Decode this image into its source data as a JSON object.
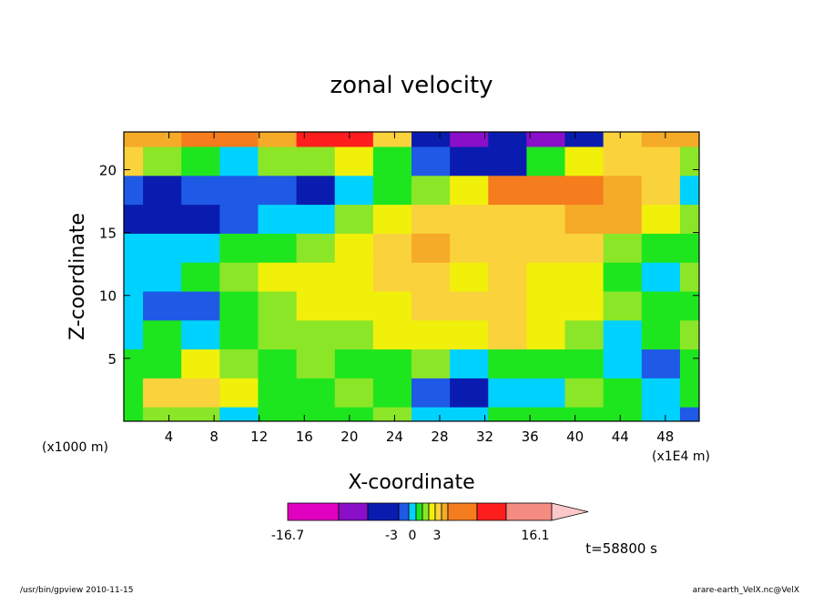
{
  "chart_data": {
    "type": "heatmap",
    "title": "zonal velocity",
    "xlabel": "X-coordinate",
    "ylabel": "Z-coordinate",
    "x_unit_left": "(x1000 m)",
    "x_unit_right": "(x1E4 m)",
    "xlim": [
      0,
      51
    ],
    "ylim": [
      0,
      23
    ],
    "x_ticks": [
      "4",
      "8",
      "12",
      "16",
      "20",
      "24",
      "28",
      "32",
      "36",
      "40",
      "44",
      "48"
    ],
    "y_ticks": [
      "5",
      "10",
      "15",
      "20"
    ],
    "colorbar": {
      "labels": [
        "-16.7",
        "-3",
        "0",
        "3",
        "16.1"
      ],
      "colors": [
        "#e000c0",
        "#8a0fc8",
        "#0a1cb0",
        "#1e5ae6",
        "#00d2ff",
        "#1ee61e",
        "#8ce628",
        "#f0f00a",
        "#fad23c",
        "#f5aa28",
        "#f57d1e",
        "#ff1e1e",
        "#f58c82",
        "#fac8c8"
      ]
    },
    "x": [
      0,
      3.4,
      6.8,
      10.2,
      13.6,
      17,
      20.4,
      23.8,
      27.2,
      30.6,
      34,
      37.4,
      40.8,
      44.2,
      47.6,
      51
    ],
    "y": [
      0,
      2.3,
      4.6,
      6.9,
      9.2,
      11.5,
      13.8,
      16.1,
      18.4,
      20.7,
      23
    ],
    "z": [
      [
        5,
        6,
        6,
        4,
        5,
        5,
        5,
        6,
        4,
        4,
        5,
        5,
        5,
        5,
        4,
        3
      ],
      [
        5,
        8,
        8,
        7,
        5,
        5,
        6,
        5,
        3,
        2,
        4,
        4,
        6,
        5,
        4,
        5
      ],
      [
        5,
        5,
        7,
        6,
        5,
        6,
        5,
        5,
        6,
        4,
        5,
        5,
        5,
        4,
        3,
        5
      ],
      [
        4,
        5,
        4,
        5,
        6,
        6,
        6,
        7,
        7,
        7,
        8,
        7,
        6,
        4,
        5,
        6
      ],
      [
        4,
        3,
        3,
        5,
        6,
        7,
        7,
        7,
        8,
        8,
        8,
        7,
        7,
        6,
        5,
        5
      ],
      [
        4,
        4,
        5,
        6,
        7,
        7,
        7,
        8,
        8,
        7,
        8,
        7,
        7,
        5,
        4,
        6
      ],
      [
        4,
        4,
        4,
        5,
        5,
        6,
        7,
        8,
        9,
        8,
        8,
        8,
        8,
        6,
        5,
        5
      ],
      [
        2,
        2,
        2,
        3,
        4,
        4,
        6,
        7,
        8,
        8,
        8,
        8,
        9,
        9,
        7,
        6
      ],
      [
        3,
        2,
        3,
        3,
        3,
        2,
        4,
        5,
        6,
        7,
        10,
        10,
        10,
        9,
        8,
        4
      ],
      [
        8,
        6,
        5,
        4,
        6,
        6,
        7,
        5,
        3,
        2,
        2,
        5,
        7,
        8,
        8,
        6
      ],
      [
        9,
        9,
        10,
        10,
        9,
        11,
        11,
        8,
        2,
        1,
        2,
        1,
        2,
        8,
        9,
        9
      ]
    ],
    "annotation": "t=58800 s"
  },
  "footer": {
    "left": "/usr/bin/gpview   2010-11-15",
    "right": "arare-earth_VelX.nc@VelX"
  }
}
